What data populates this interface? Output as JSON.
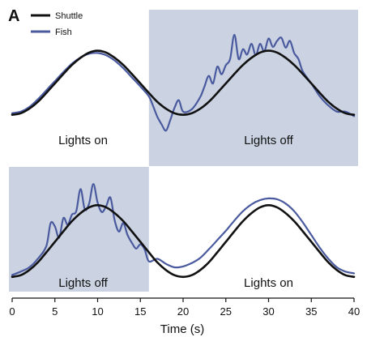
{
  "chart_data": {
    "type": "line",
    "panel_label": "A",
    "xlabel": "Time (s)",
    "xlim": [
      0,
      40
    ],
    "xticks": [
      0,
      5,
      10,
      15,
      20,
      25,
      30,
      35,
      40
    ],
    "legend": {
      "placement": "top-left",
      "entries": [
        {
          "name": "Shuttle",
          "color": "#111111"
        },
        {
          "name": "Fish",
          "color": "#4a5a9e"
        }
      ]
    },
    "shade_color": "#cbd3e2",
    "panels": [
      {
        "id": "top",
        "shaded_interval": [
          16,
          40
        ],
        "annotations": [
          {
            "text": "Lights on",
            "x": 8.3
          },
          {
            "text": "Lights off",
            "x": 30
          }
        ],
        "series": [
          {
            "name": "Shuttle",
            "color": "#111111",
            "x": [
              0,
              1,
              2,
              3,
              4,
              5,
              6,
              7,
              8,
              9,
              10,
              11,
              12,
              13,
              14,
              15,
              16,
              17,
              18,
              19,
              20,
              21,
              22,
              23,
              24,
              25,
              26,
              27,
              28,
              29,
              30,
              31,
              32,
              33,
              34,
              35,
              36,
              37,
              38,
              39,
              40
            ],
            "y": [
              0.088,
              0.108,
              0.168,
              0.257,
              0.376,
              0.5,
              0.624,
              0.743,
              0.837,
              0.905,
              0.93,
              0.905,
              0.837,
              0.743,
              0.624,
              0.5,
              0.376,
              0.257,
              0.168,
              0.108,
              0.088,
              0.108,
              0.168,
              0.257,
              0.376,
              0.5,
              0.624,
              0.743,
              0.837,
              0.905,
              0.93,
              0.905,
              0.837,
              0.743,
              0.624,
              0.5,
              0.376,
              0.257,
              0.168,
              0.108,
              0.088
            ]
          },
          {
            "name": "Fish",
            "color": "#4a5a9e",
            "x": [
              0,
              1,
              2,
              3,
              4,
              5,
              6,
              7,
              8,
              9,
              10,
              11,
              12,
              13,
              14,
              15,
              16,
              16.5,
              17,
              17.5,
              18,
              18.5,
              19,
              19.5,
              20,
              21,
              22,
              22.5,
              23,
              23.5,
              24,
              24.5,
              25,
              25.5,
              26,
              26.5,
              27,
              27.5,
              28,
              28.5,
              29,
              29.5,
              30,
              30.5,
              31,
              31.5,
              32,
              32.5,
              33,
              33.5,
              34,
              35,
              36,
              37,
              38,
              39,
              40
            ],
            "y": [
              0.11,
              0.13,
              0.19,
              0.29,
              0.41,
              0.53,
              0.65,
              0.76,
              0.84,
              0.89,
              0.9,
              0.87,
              0.8,
              0.7,
              0.58,
              0.46,
              0.33,
              0.2,
              0.06,
              -0.04,
              -0.12,
              0.02,
              0.18,
              0.28,
              0.13,
              0.16,
              0.32,
              0.46,
              0.6,
              0.5,
              0.72,
              0.62,
              0.74,
              0.82,
              1.14,
              0.82,
              0.95,
              0.88,
              1.02,
              0.87,
              1.02,
              0.92,
              1.09,
              0.98,
              1.06,
              1.1,
              0.97,
              1.06,
              0.9,
              0.82,
              0.66,
              0.5,
              0.33,
              0.21,
              0.13,
              0.13,
              0.07
            ]
          }
        ]
      },
      {
        "id": "bottom",
        "shaded_interval": [
          0,
          16
        ],
        "annotations": [
          {
            "text": "Lights off",
            "x": 8.3
          },
          {
            "text": "Lights on",
            "x": 30
          }
        ],
        "series": [
          {
            "name": "Shuttle",
            "color": "#111111",
            "x": [
              0,
              1,
              2,
              3,
              4,
              5,
              6,
              7,
              8,
              9,
              10,
              11,
              12,
              13,
              14,
              15,
              16,
              17,
              18,
              19,
              20,
              21,
              22,
              23,
              24,
              25,
              26,
              27,
              28,
              29,
              30,
              31,
              32,
              33,
              34,
              35,
              36,
              37,
              38,
              39,
              40
            ],
            "y": [
              0.088,
              0.108,
              0.168,
              0.257,
              0.376,
              0.5,
              0.624,
              0.743,
              0.837,
              0.905,
              0.93,
              0.905,
              0.837,
              0.743,
              0.624,
              0.5,
              0.376,
              0.257,
              0.168,
              0.108,
              0.088,
              0.108,
              0.168,
              0.257,
              0.376,
              0.5,
              0.624,
              0.743,
              0.837,
              0.905,
              0.93,
              0.905,
              0.837,
              0.743,
              0.624,
              0.5,
              0.376,
              0.257,
              0.168,
              0.108,
              0.088
            ]
          },
          {
            "name": "Fish",
            "color": "#4a5a9e",
            "x": [
              0,
              1,
              2,
              3,
              4,
              4.5,
              5,
              5.5,
              6,
              6.5,
              7,
              7.5,
              8,
              8.5,
              9,
              9.5,
              10,
              10.5,
              11,
              11.5,
              12,
              12.5,
              13,
              13.5,
              14,
              14.5,
              15,
              15.5,
              16,
              17,
              18,
              19,
              20,
              21,
              22,
              23,
              24,
              25,
              26,
              27,
              28,
              29,
              30,
              31,
              32,
              33,
              34,
              35,
              36,
              37,
              38,
              39,
              40
            ],
            "y": [
              0.11,
              0.15,
              0.2,
              0.3,
              0.45,
              0.72,
              0.68,
              0.55,
              0.78,
              0.7,
              0.82,
              0.86,
              1.12,
              0.88,
              0.95,
              1.18,
              0.96,
              0.85,
              0.92,
              1.02,
              0.75,
              0.62,
              0.72,
              0.58,
              0.49,
              0.42,
              0.47,
              0.41,
              0.27,
              0.3,
              0.24,
              0.2,
              0.21,
              0.25,
              0.31,
              0.41,
              0.52,
              0.63,
              0.75,
              0.86,
              0.94,
              0.99,
              1.01,
              1.0,
              0.95,
              0.86,
              0.73,
              0.58,
              0.43,
              0.3,
              0.2,
              0.15,
              0.13
            ]
          }
        ]
      }
    ]
  }
}
